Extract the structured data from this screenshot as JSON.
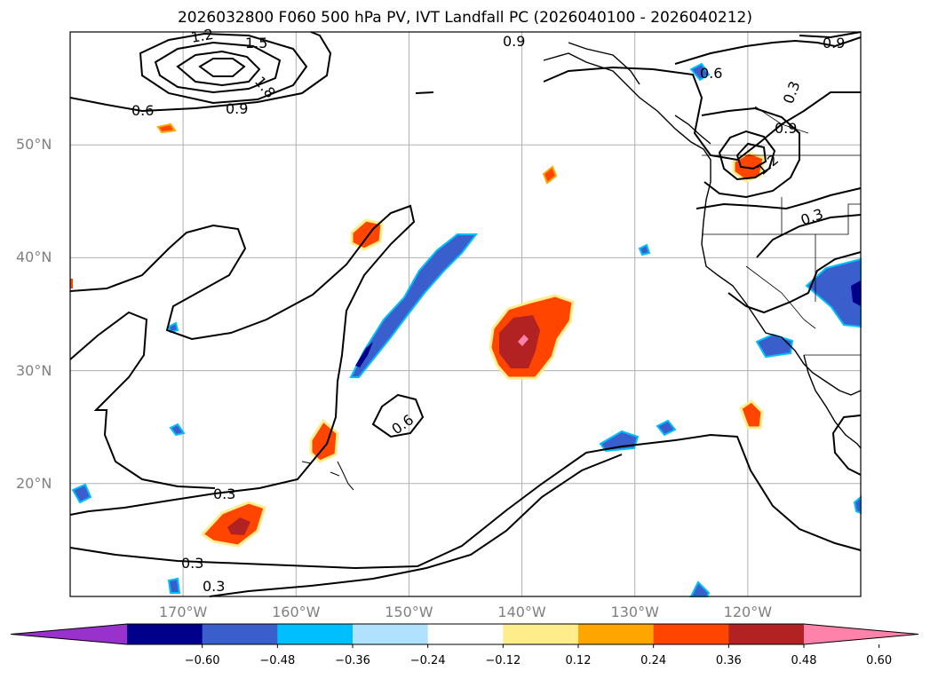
{
  "title": "2026032800 F060 500 hPa PV, IVT Landfall PC (2026040100 - 2026040212)",
  "map": {
    "lon_range": [
      -180,
      -110
    ],
    "lat_range": [
      10,
      60
    ],
    "lat_labels": [
      {
        "lat": 50,
        "text": "50°N"
      },
      {
        "lat": 40,
        "text": "40°N"
      },
      {
        "lat": 30,
        "text": "30°N"
      },
      {
        "lat": 20,
        "text": "20°N"
      }
    ],
    "lon_labels": [
      {
        "lon": -170,
        "text": "170°W"
      },
      {
        "lon": -160,
        "text": "160°W"
      },
      {
        "lon": -150,
        "text": "150°W"
      },
      {
        "lon": -140,
        "text": "140°W"
      },
      {
        "lon": -130,
        "text": "130°W"
      },
      {
        "lon": -120,
        "text": "120°W"
      }
    ],
    "contour_labels": [
      "1.2",
      "1.5",
      "1.8",
      "0.6",
      "0.9",
      "0.9",
      "0.6",
      "0.3",
      "0.9",
      "1.2",
      "0.3",
      "0.6",
      "0.3",
      "0.3",
      "0.3",
      "0.9"
    ]
  },
  "colorbar": {
    "ticks": [
      "−0.60",
      "−0.48",
      "−0.36",
      "−0.24",
      "−0.12",
      "0.12",
      "0.24",
      "0.36",
      "0.48",
      "0.60"
    ],
    "colors": [
      "#9932cc",
      "#00008b",
      "#3a5fcd",
      "#00bfff",
      "#b0e2ff",
      "#ffffff",
      "#ffec8b",
      "#ffa500",
      "#ff4500",
      "#b22222",
      "#ff82ab"
    ]
  },
  "chart_data": {
    "type": "heatmap",
    "title": "2026032800 F060 500 hPa PV, IVT Landfall PC (2026040100 - 2026040212)",
    "fields": [
      "IVT Landfall PC (filled)",
      "500 hPa PV (contours)"
    ],
    "color_levels": [
      -0.6,
      -0.48,
      -0.36,
      -0.24,
      -0.12,
      0.12,
      0.24,
      0.36,
      0.48,
      0.6
    ],
    "pv_contour_levels": [
      0.3,
      0.6,
      0.9,
      1.2,
      1.5,
      1.8
    ],
    "grid": true
  }
}
